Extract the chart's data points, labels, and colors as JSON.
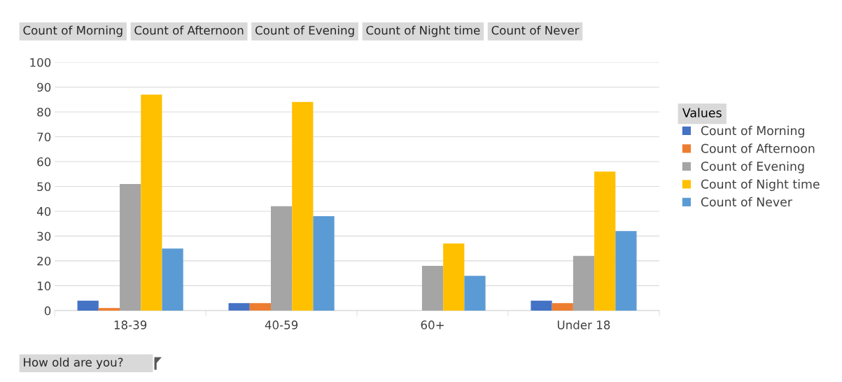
{
  "chart_data": {
    "type": "bar",
    "xlabel": "How old are you?",
    "legend_title": "Values",
    "legend": "right",
    "categories": [
      "18-39",
      "40-59",
      "60+",
      "Under 18"
    ],
    "series": [
      {
        "name": "Count of Morning",
        "color": "#4472c4",
        "values": [
          4,
          3,
          null,
          4
        ]
      },
      {
        "name": "Count of Afternoon",
        "color": "#ed7d31",
        "values": [
          1,
          3,
          null,
          3
        ]
      },
      {
        "name": "Count of Evening",
        "color": "#a5a5a5",
        "values": [
          51,
          42,
          18,
          22
        ]
      },
      {
        "name": "Count of Night time",
        "color": "#ffc000",
        "values": [
          87,
          84,
          27,
          56
        ]
      },
      {
        "name": "Count of Never",
        "color": "#5b9bd5",
        "values": [
          25,
          38,
          14,
          32
        ]
      }
    ],
    "annotations": [
      "Count of Morning",
      "Count of Afternoon",
      "Count of Evening",
      "Count of Night time",
      "Count of Never"
    ],
    "ylim": [
      0,
      100
    ],
    "yticks": [
      0,
      10,
      20,
      30,
      40,
      50,
      60,
      70,
      80,
      90,
      100
    ],
    "grid": "y"
  }
}
